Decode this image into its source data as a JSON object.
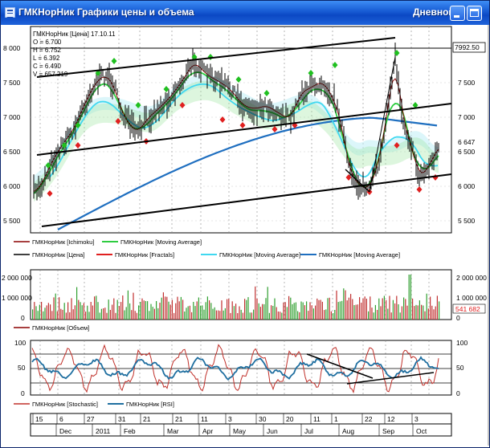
{
  "window": {
    "title": "ГМКНорНик Графики цены и объема",
    "period": "Дневной",
    "buttons": [
      "minimize",
      "maximize"
    ]
  },
  "price_panel": {
    "info": [
      "ГМКНорНик [Цена] 17.10.11",
      "O = 6.700",
      "H = 6.752",
      "L = 6.392",
      "C = 6.490",
      "V = 657.219"
    ],
    "y_ticks_left": [
      "8 000",
      "7 500",
      "7 000",
      "6 500",
      "6 000",
      "5 500"
    ],
    "y_ticks_right": [
      "7 500",
      "7 000",
      "6 500",
      "6 000",
      "5 500"
    ],
    "current_marker": "7992.50",
    "last_price_label": "6 647",
    "legend": [
      {
        "label": "ГМКНорНик [Ichimoku]",
        "color": "#8b0000"
      },
      {
        "label": "ГМКНорНик [Moving Average]",
        "color": "#2ecc40"
      },
      {
        "label": "ГМКНорНик [Цена]",
        "color": "#000000"
      },
      {
        "label": "ГМКНорНик [Fractals]",
        "color": "#e02020"
      },
      {
        "label": "ГМКНорНик [Moving Average]",
        "color": "#40d8f0"
      },
      {
        "label": "ГМКНорНик [Moving Average]",
        "color": "#1f6fc0"
      }
    ]
  },
  "volume_panel": {
    "y_ticks_left": [
      "2 000 000",
      "1 000 000",
      "0"
    ],
    "y_ticks_right": [
      "2 000 000",
      "1 000 000",
      "0"
    ],
    "last_value_label": "541 682",
    "legend": [
      {
        "label": "ГМКНорНик [Объем]",
        "color": "#8b0000"
      }
    ]
  },
  "oscillator_panel": {
    "y_ticks_left": [
      "100",
      "50",
      "0"
    ],
    "y_ticks_right": [
      "100",
      "50",
      "0"
    ],
    "legend": [
      {
        "label": "ГМКНорНик [Stochastic]",
        "color": "#c0302a"
      },
      {
        "label": "ГМКНорНик [RSI]",
        "color": "#1f6fa0"
      }
    ]
  },
  "time_axis": {
    "days": [
      "15",
      "6",
      "27",
      "31",
      "21",
      "21",
      "11",
      "3",
      "30",
      "20",
      "11",
      "1",
      "22",
      "12",
      "3"
    ],
    "months": [
      "Dec",
      "2011",
      "Feb",
      "Mar",
      "Apr",
      "May",
      "Jun",
      "Jul",
      "Aug",
      "Sep",
      "Oct"
    ]
  },
  "colors": {
    "titlebar": "#1a5fd6",
    "price_line": "#000000",
    "fractal_up": "#20c020",
    "fractal_down": "#e02020",
    "ichimoku": "#8b0000",
    "ma_green": "#2ecc40",
    "ma_cyan": "#40d8f0",
    "ma_blue": "#1f6fc0",
    "volume_bar": "#c03030",
    "volume_bar_alt": "#30a030"
  }
}
